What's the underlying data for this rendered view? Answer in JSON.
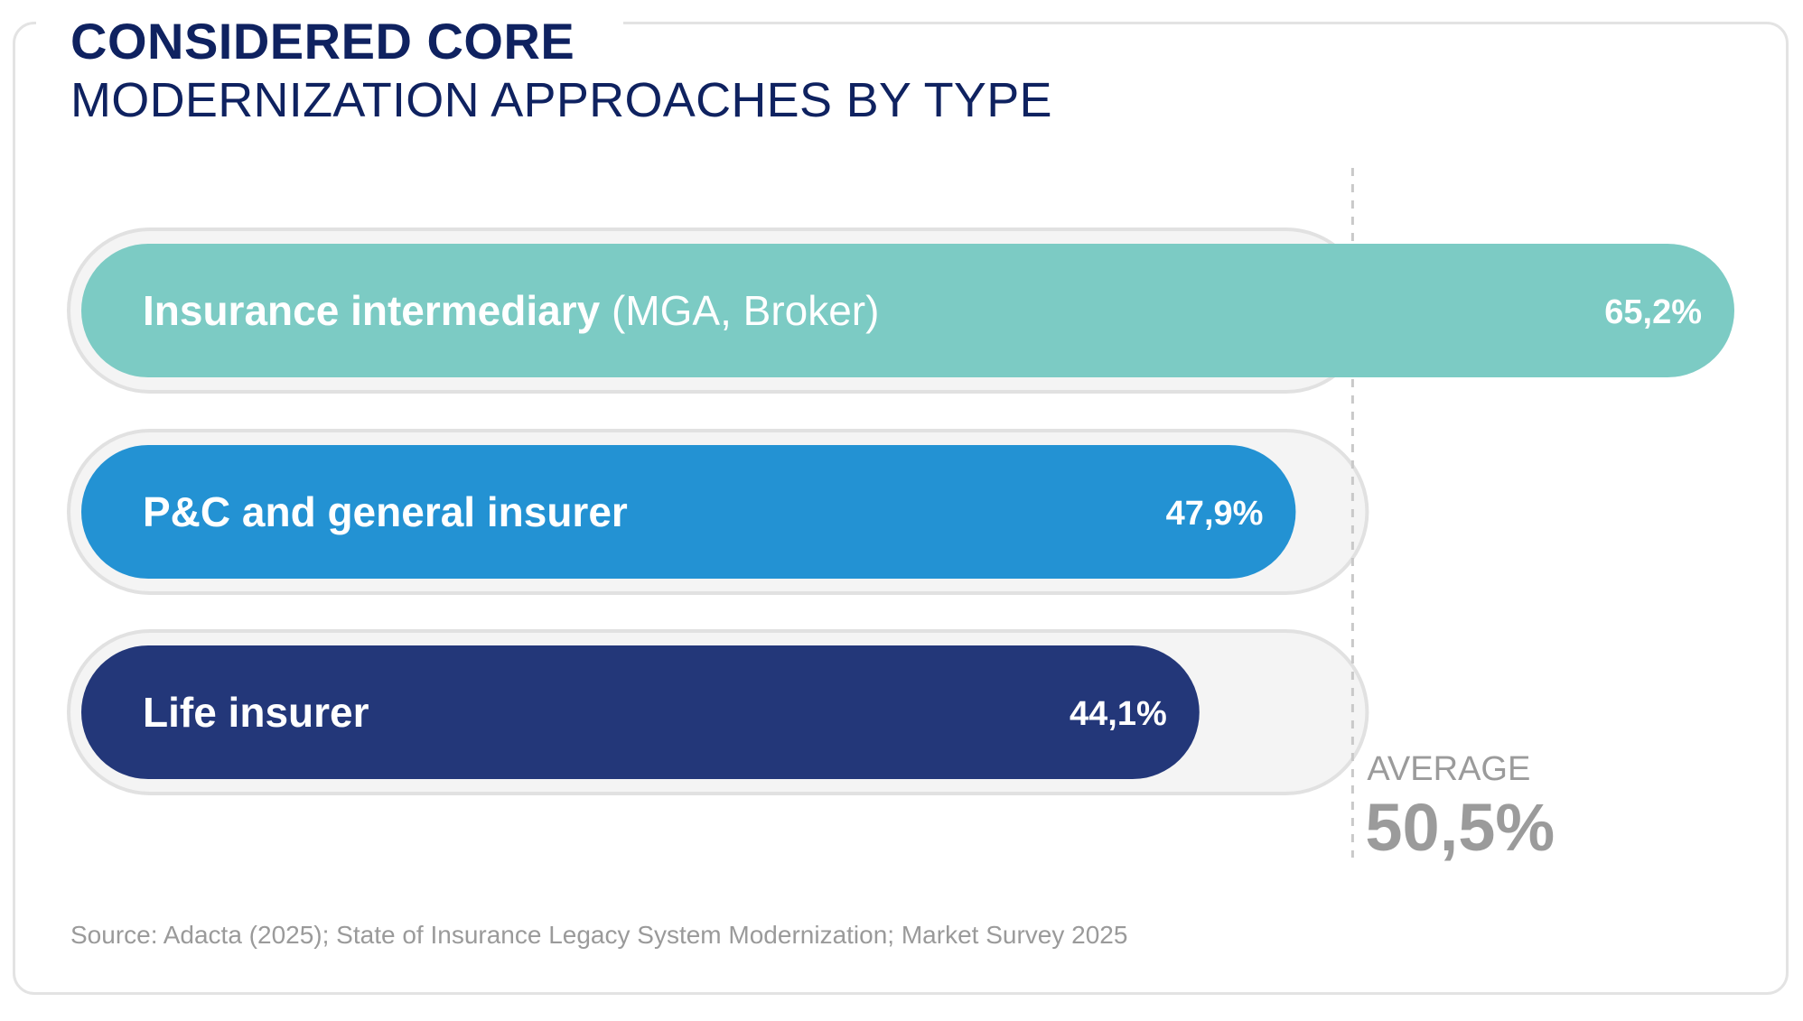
{
  "title": "CONSIDERED CORE",
  "subtitle": "MODERNIZATION APPROACHES BY TYPE",
  "source": "Source: Adacta (2025); State of Insurance Legacy System Modernization; Market Survey 2025",
  "colors": {
    "intermediary": "#7ccbc4",
    "pc_general": "#2392d3",
    "life": "#233779",
    "track": "#f4f4f4",
    "track_border": "#e1e1e1",
    "average": "#9b9b9b"
  },
  "chart_data": {
    "type": "bar",
    "orientation": "horizontal",
    "categories": [
      "Insurance intermediary (MGA, Broker)",
      "P&C and general insurer",
      "Life insurer"
    ],
    "labels": [
      {
        "bold": "Insurance intermediary",
        "normal": " (MGA, Broker)"
      },
      {
        "bold": "P&C and general insurer",
        "normal": ""
      },
      {
        "bold": "Life insurer",
        "normal": ""
      }
    ],
    "values": [
      65.2,
      47.9,
      44.1
    ],
    "value_labels": [
      "65,2%",
      "47,9%",
      "44,1%"
    ],
    "average": {
      "label": "AVERAGE",
      "value": 50.5,
      "value_label": "50,5%"
    },
    "unit": "%",
    "xlim": [
      0,
      100
    ]
  }
}
